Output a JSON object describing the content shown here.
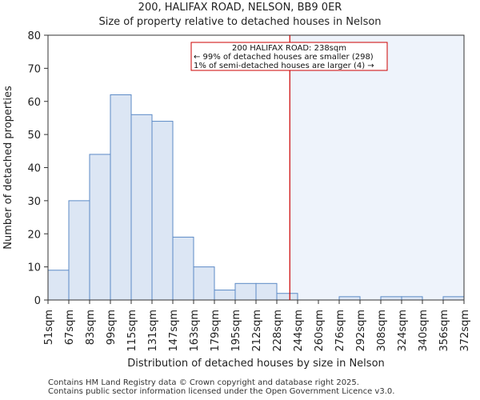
{
  "chart_data": {
    "type": "histogram",
    "title": "200, HALIFAX ROAD, NELSON, BB9 0ER",
    "subtitle": "Size of property relative to detached houses in Nelson",
    "xlabel": "Distribution of detached houses by size in Nelson",
    "ylabel": "Number of detached properties",
    "ylim": [
      0,
      80
    ],
    "yticks": [
      0,
      10,
      20,
      30,
      40,
      50,
      60,
      70,
      80
    ],
    "categories": [
      "51sqm",
      "67sqm",
      "83sqm",
      "99sqm",
      "115sqm",
      "131sqm",
      "147sqm",
      "163sqm",
      "179sqm",
      "195sqm",
      "212sqm",
      "228sqm",
      "244sqm",
      "260sqm",
      "276sqm",
      "292sqm",
      "308sqm",
      "324sqm",
      "340sqm",
      "356sqm",
      "372sqm"
    ],
    "values": [
      9,
      30,
      44,
      62,
      56,
      54,
      19,
      10,
      3,
      5,
      5,
      2,
      0,
      0,
      1,
      0,
      1,
      1,
      0,
      1
    ],
    "marker": {
      "value_sqm": 238,
      "label": "200 HALIFAX ROAD"
    },
    "annotation": [
      "200 HALIFAX ROAD: 238sqm",
      "← 99% of detached houses are smaller (298)",
      "1% of semi-detached houses are larger (4) →"
    ],
    "colors": {
      "bar_fill": "#dce6f4",
      "bar_stroke": "#5b8ac6",
      "marker": "#cc0000",
      "shade": "#eef3fb"
    }
  },
  "footer": {
    "line1": "Contains HM Land Registry data © Crown copyright and database right 2025.",
    "line2": "Contains public sector information licensed under the Open Government Licence v3.0."
  }
}
